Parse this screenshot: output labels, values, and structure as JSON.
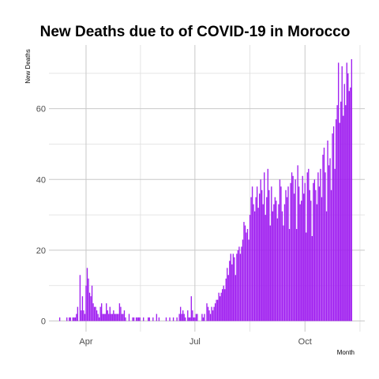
{
  "chart_data": {
    "type": "bar",
    "title": "New Deaths due to of COVID-19 in Morocco",
    "xlabel": "Month",
    "ylabel": "New  Deaths",
    "x_tick_labels": [
      "Apr",
      "Jul",
      "Oct"
    ],
    "y_tick_labels": [
      "0",
      "20",
      "40",
      "60"
    ],
    "y_ticks": [
      0,
      20,
      40,
      60
    ],
    "ylim": [
      -3,
      78
    ],
    "xlim": [
      "2020-03-01",
      "2020-11-20"
    ],
    "x_ticks": [
      "2020-04-01",
      "2020-07-01",
      "2020-10-01"
    ],
    "grid": true,
    "bar_color": "#a020f0",
    "start_date": "2020-03-10",
    "values": [
      1,
      0,
      0,
      0,
      0,
      0,
      1,
      0,
      1,
      1,
      0,
      1,
      1,
      1,
      2,
      4,
      0,
      13,
      3,
      7,
      3,
      2,
      10,
      15,
      12,
      8,
      7,
      10,
      5,
      4,
      4,
      3,
      2,
      1,
      4,
      5,
      2,
      2,
      2,
      5,
      3,
      2,
      4,
      2,
      2,
      3,
      2,
      2,
      2,
      2,
      5,
      4,
      2,
      2,
      3,
      1,
      0,
      0,
      2,
      0,
      0,
      1,
      1,
      0,
      1,
      1,
      1,
      1,
      0,
      0,
      1,
      0,
      0,
      0,
      1,
      1,
      0,
      0,
      1,
      0,
      0,
      2,
      0,
      1,
      0,
      0,
      0,
      0,
      0,
      1,
      0,
      0,
      1,
      0,
      0,
      1,
      0,
      0,
      1,
      0,
      2,
      4,
      2,
      3,
      2,
      1,
      0,
      3,
      1,
      1,
      7,
      3,
      1,
      1,
      2,
      2,
      0,
      0,
      0,
      2,
      1,
      2,
      0,
      5,
      4,
      3,
      2,
      4,
      3,
      4,
      5,
      6,
      6,
      8,
      7,
      8,
      9,
      10,
      9,
      12,
      15,
      13,
      17,
      19,
      16,
      19,
      18,
      13,
      19,
      20,
      21,
      19,
      21,
      23,
      28,
      27,
      25,
      26,
      23,
      30,
      35,
      38,
      33,
      31,
      35,
      38,
      32,
      36,
      40,
      37,
      33,
      42,
      30,
      35,
      43,
      37,
      27,
      38,
      31,
      33,
      35,
      34,
      29,
      33,
      40,
      38,
      31,
      27,
      33,
      37,
      35,
      38,
      26,
      39,
      42,
      41,
      36,
      40,
      26,
      44,
      38,
      33,
      34,
      41,
      36,
      39,
      25,
      42,
      43,
      37,
      34,
      24,
      39,
      40,
      37,
      33,
      42,
      38,
      43,
      35,
      47,
      49,
      42,
      31,
      51,
      44,
      46,
      37,
      53,
      55,
      43,
      57,
      61,
      73,
      56,
      62,
      72,
      58,
      67,
      61,
      73,
      70,
      65,
      66,
      74
    ]
  }
}
